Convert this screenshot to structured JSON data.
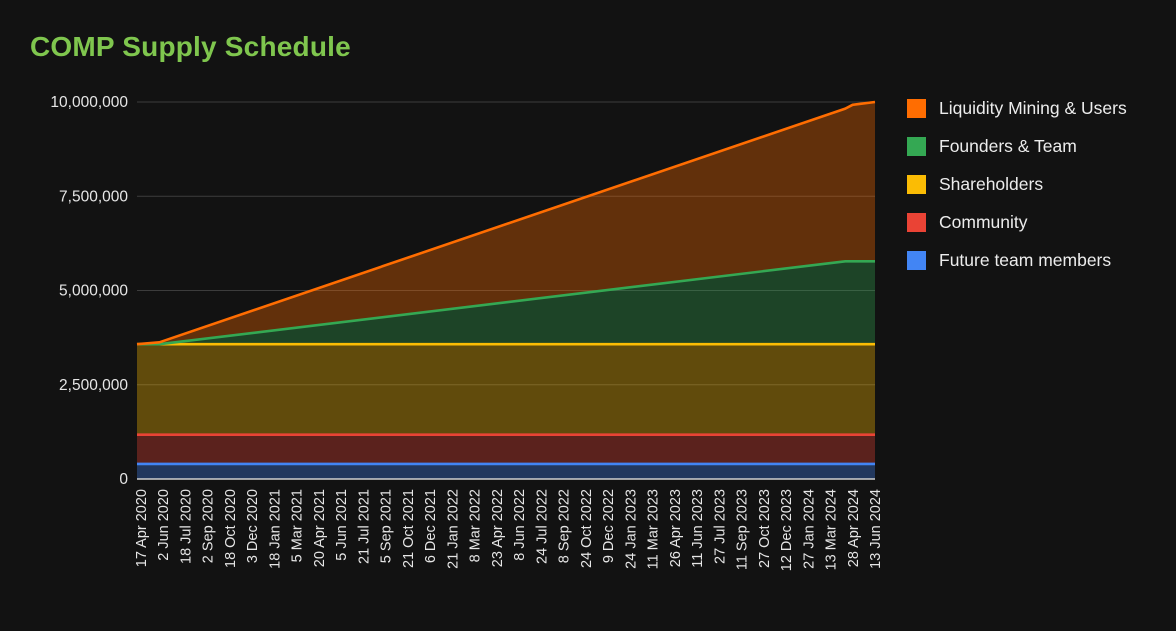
{
  "chart_data": {
    "type": "area",
    "stacked": true,
    "title": "COMP Supply Schedule",
    "xlabel": "",
    "ylabel": "",
    "ylim": [
      0,
      10000000
    ],
    "yticks": [
      {
        "value": 0,
        "label": "0"
      },
      {
        "value": 2500000,
        "label": "2,500,000"
      },
      {
        "value": 5000000,
        "label": "5,000,000"
      },
      {
        "value": 7500000,
        "label": "7,500,000"
      },
      {
        "value": 10000000,
        "label": "10,000,000"
      }
    ],
    "x_tick_labels": [
      "17 Apr 2020",
      "2 Jun 2020",
      "18 Jul 2020",
      "2 Sep 2020",
      "18 Oct 2020",
      "3 Dec 2020",
      "18 Jan 2021",
      "5 Mar 2021",
      "20 Apr 2021",
      "5 Jun 2021",
      "21 Jul 2021",
      "5 Sep 2021",
      "21 Oct 2021",
      "6 Dec 2021",
      "21 Jan 2022",
      "8 Mar 2022",
      "23 Apr 2022",
      "8 Jun 2022",
      "24 Jul 2022",
      "8 Sep 2022",
      "24 Oct 2022",
      "9 Dec 2022",
      "24 Jan 2023",
      "11 Mar 2023",
      "26 Apr 2023",
      "11 Jun 2023",
      "27 Jul 2023",
      "11 Sep 2023",
      "27 Oct 2023",
      "12 Dec 2023",
      "27 Jan 2024",
      "13 Mar 2024",
      "28 Apr 2024",
      "13 Jun 2024"
    ],
    "x": [
      "17 Apr 2020",
      "2 Jun 2020",
      "13 Apr 2024",
      "28 Apr 2024",
      "13 Jun 2024"
    ],
    "grid": true,
    "legend_position": "right",
    "series": [
      {
        "name": "Future team members",
        "color": "#4285f4",
        "values": [
          400000,
          400000,
          400000,
          400000,
          400000
        ]
      },
      {
        "name": "Community",
        "color": "#ea4335",
        "values": [
          775000,
          775000,
          775000,
          775000,
          775000
        ]
      },
      {
        "name": "Shareholders",
        "color": "#fbbc04",
        "values": [
          2400000,
          2400000,
          2400000,
          2400000,
          2400000
        ]
      },
      {
        "name": "Founders & Team",
        "color": "#34a853",
        "values": [
          0,
          0,
          2200000,
          2200000,
          2200000
        ]
      },
      {
        "name": "Liquidity Mining & Users",
        "color": "#ff6d01",
        "values": [
          0,
          50000,
          4050000,
          4150000,
          4225000
        ]
      }
    ]
  },
  "legend_order": [
    "Liquidity Mining & Users",
    "Founders & Team",
    "Shareholders",
    "Community",
    "Future team members"
  ]
}
